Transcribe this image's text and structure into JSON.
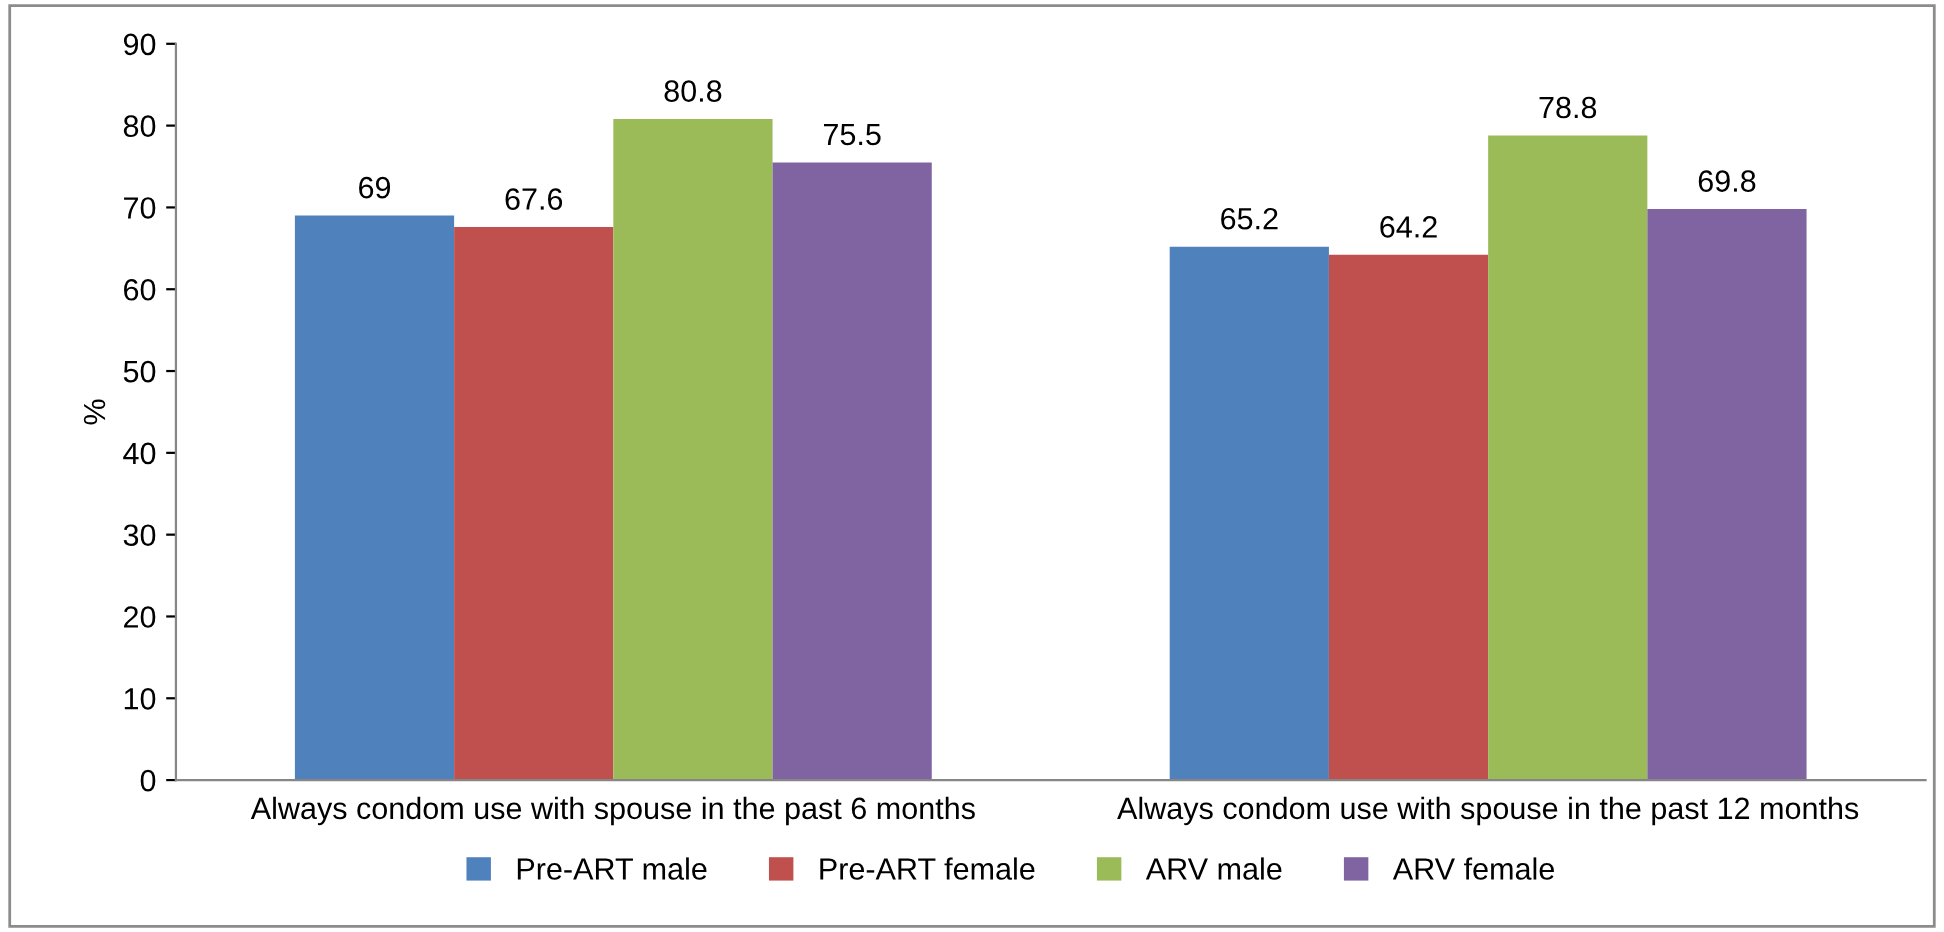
{
  "chart_data": {
    "type": "bar",
    "categories": [
      "Always condom use with spouse in the past 6 months",
      "Always condom use with spouse in the past 12 months"
    ],
    "ylabel": "%",
    "series": [
      {
        "name": "Pre-ART male",
        "color": "#4f81bd",
        "values": [
          69,
          65.2
        ]
      },
      {
        "name": "Pre-ART female",
        "color": "#c0504d",
        "values": [
          67.6,
          64.2
        ]
      },
      {
        "name": "ARV male",
        "color": "#9bbb59",
        "values": [
          80.8,
          78.8
        ]
      },
      {
        "name": "ARV female",
        "color": "#8064a2",
        "values": [
          75.5,
          69.8
        ]
      }
    ],
    "ylim": [
      0,
      90
    ],
    "yticks": [
      0,
      10,
      20,
      30,
      40,
      50,
      60,
      70,
      80,
      90
    ],
    "data_labels": true,
    "legend": "bottom",
    "grid": false
  }
}
